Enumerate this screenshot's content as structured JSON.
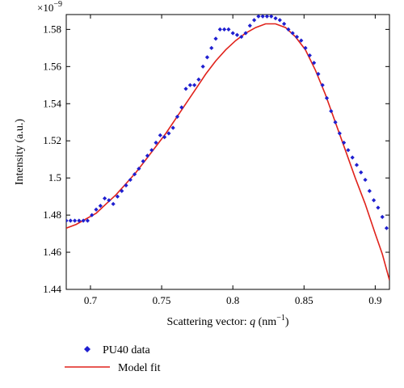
{
  "chart_data": {
    "type": "scatter",
    "scale_label": "×10",
    "scale_exponent": "−9",
    "xlabel_prefix": "Scattering vector: ",
    "xlabel_var": "q",
    "xlabel_unit_open": " (nm",
    "xlabel_unit_exp": "−1",
    "xlabel_unit_close": ")",
    "ylabel": "Intensity (a.u.)",
    "xlim": [
      0.683,
      0.91
    ],
    "ylim": [
      1.44,
      1.588
    ],
    "xticks": [
      0.7,
      0.75,
      0.8,
      0.85,
      0.9
    ],
    "xtick_labels": [
      "0.7",
      "0.75",
      "0.8",
      "0.85",
      "0.9"
    ],
    "yticks": [
      1.44,
      1.46,
      1.48,
      1.5,
      1.52,
      1.54,
      1.56,
      1.58
    ],
    "ytick_labels": [
      "1.44",
      "1.46",
      "1.48",
      "1.5",
      "1.52",
      "1.54",
      "1.56",
      "1.58"
    ],
    "grid": false,
    "legend_position": "below",
    "series": [
      {
        "name": "PU40 data",
        "kind": "points",
        "color": "#1f1fd0",
        "marker": "diamond",
        "x": [
          0.683,
          0.686,
          0.689,
          0.692,
          0.695,
          0.698,
          0.701,
          0.704,
          0.707,
          0.71,
          0.713,
          0.716,
          0.719,
          0.722,
          0.725,
          0.728,
          0.731,
          0.734,
          0.737,
          0.74,
          0.743,
          0.746,
          0.749,
          0.752,
          0.755,
          0.758,
          0.761,
          0.764,
          0.767,
          0.77,
          0.773,
          0.776,
          0.779,
          0.782,
          0.785,
          0.788,
          0.791,
          0.794,
          0.797,
          0.8,
          0.803,
          0.806,
          0.809,
          0.812,
          0.815,
          0.818,
          0.821,
          0.824,
          0.827,
          0.83,
          0.833,
          0.836,
          0.839,
          0.842,
          0.845,
          0.848,
          0.851,
          0.854,
          0.857,
          0.86,
          0.863,
          0.866,
          0.869,
          0.872,
          0.875,
          0.878,
          0.881,
          0.884,
          0.887,
          0.89,
          0.893,
          0.896,
          0.899,
          0.902,
          0.905,
          0.908
        ],
        "y": [
          1.477,
          1.477,
          1.477,
          1.477,
          1.477,
          1.477,
          1.48,
          1.483,
          1.485,
          1.489,
          1.488,
          1.486,
          1.49,
          1.493,
          1.496,
          1.499,
          1.502,
          1.505,
          1.509,
          1.512,
          1.515,
          1.519,
          1.523,
          1.522,
          1.524,
          1.527,
          1.533,
          1.538,
          1.548,
          1.55,
          1.55,
          1.553,
          1.56,
          1.565,
          1.57,
          1.575,
          1.58,
          1.58,
          1.58,
          1.578,
          1.577,
          1.576,
          1.578,
          1.582,
          1.585,
          1.587,
          1.587,
          1.587,
          1.587,
          1.586,
          1.585,
          1.583,
          1.58,
          1.578,
          1.576,
          1.574,
          1.57,
          1.566,
          1.562,
          1.556,
          1.55,
          1.543,
          1.536,
          1.53,
          1.524,
          1.519,
          1.515,
          1.511,
          1.507,
          1.503,
          1.499,
          1.493,
          1.488,
          1.484,
          1.479,
          1.473
        ]
      },
      {
        "name": "Model fit",
        "kind": "line",
        "color": "#e0221b",
        "x": [
          0.683,
          0.69,
          0.697,
          0.704,
          0.711,
          0.718,
          0.725,
          0.732,
          0.739,
          0.746,
          0.753,
          0.76,
          0.767,
          0.774,
          0.781,
          0.788,
          0.795,
          0.802,
          0.809,
          0.816,
          0.823,
          0.83,
          0.837,
          0.844,
          0.851,
          0.858,
          0.865,
          0.872,
          0.879,
          0.886,
          0.893,
          0.9,
          0.905,
          0.91
        ],
        "y": [
          1.473,
          1.475,
          1.478,
          1.481,
          1.486,
          1.491,
          1.497,
          1.503,
          1.51,
          1.517,
          1.524,
          1.532,
          1.54,
          1.548,
          1.556,
          1.563,
          1.569,
          1.574,
          1.578,
          1.581,
          1.583,
          1.583,
          1.581,
          1.576,
          1.569,
          1.558,
          1.545,
          1.53,
          1.515,
          1.5,
          1.486,
          1.47,
          1.459,
          1.445
        ]
      }
    ]
  }
}
